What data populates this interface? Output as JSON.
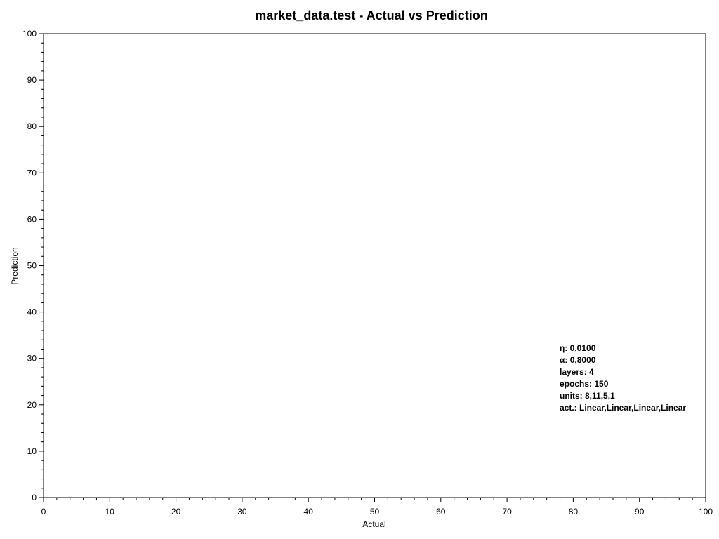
{
  "chart_data": {
    "type": "scatter",
    "title": "market_data.test - Actual vs Prediction",
    "xlabel": "Actual",
    "ylabel": "Prediction",
    "xlim": [
      0,
      100
    ],
    "ylim": [
      0,
      100
    ],
    "x_ticks": [
      0,
      10,
      20,
      30,
      40,
      50,
      60,
      70,
      80,
      90,
      100
    ],
    "y_ticks": [
      0,
      10,
      20,
      30,
      40,
      50,
      60,
      70,
      80,
      90,
      100
    ],
    "minor_tick_step": 2,
    "grid": false,
    "series": [],
    "annotations": [
      "η: 0,0100",
      "α: 0,8000",
      "layers: 4",
      "epochs: 150",
      "units: 8,11,5,1",
      "act.: Linear,Linear,Linear,Linear"
    ],
    "colors": {
      "axis": "#000000",
      "background": "#ffffff"
    }
  }
}
